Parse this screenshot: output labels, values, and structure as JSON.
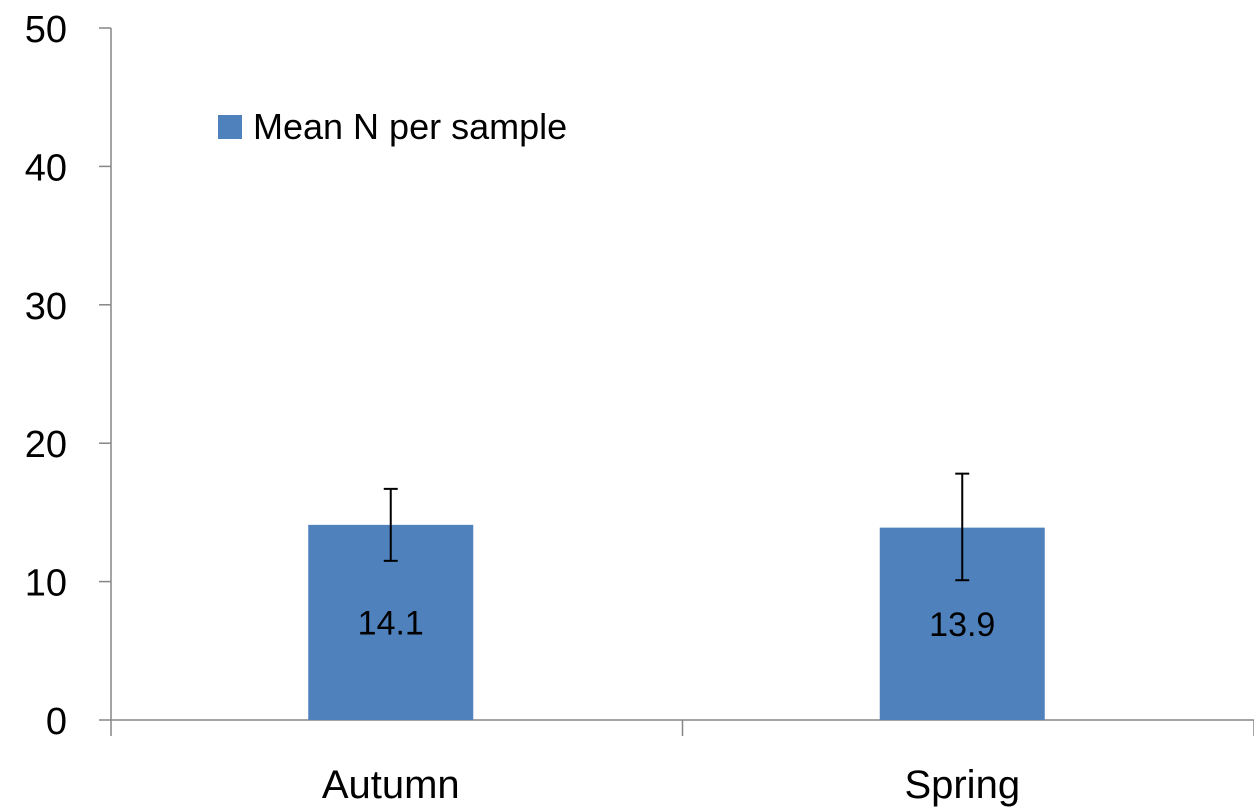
{
  "chart_data": {
    "type": "bar",
    "title": "",
    "xlabel": "",
    "ylabel": "",
    "categories": [
      "Autumn",
      "Spring"
    ],
    "series": [
      {
        "name": "Mean N per sample",
        "values": [
          14.1,
          13.9
        ],
        "error_low": [
          11.5,
          10.1
        ],
        "error_high": [
          16.7,
          17.8
        ],
        "color": "#4F81BD"
      }
    ],
    "data_labels": [
      "14.1",
      "13.9"
    ],
    "ylim": [
      0,
      50
    ],
    "yticks": [
      0,
      10,
      20,
      30,
      40,
      50
    ],
    "ytick_labels": [
      "0",
      "10",
      "20",
      "30",
      "40",
      "50"
    ],
    "grid": false,
    "legend": {
      "position": "top-left",
      "entries": [
        "Mean N per sample"
      ]
    }
  }
}
